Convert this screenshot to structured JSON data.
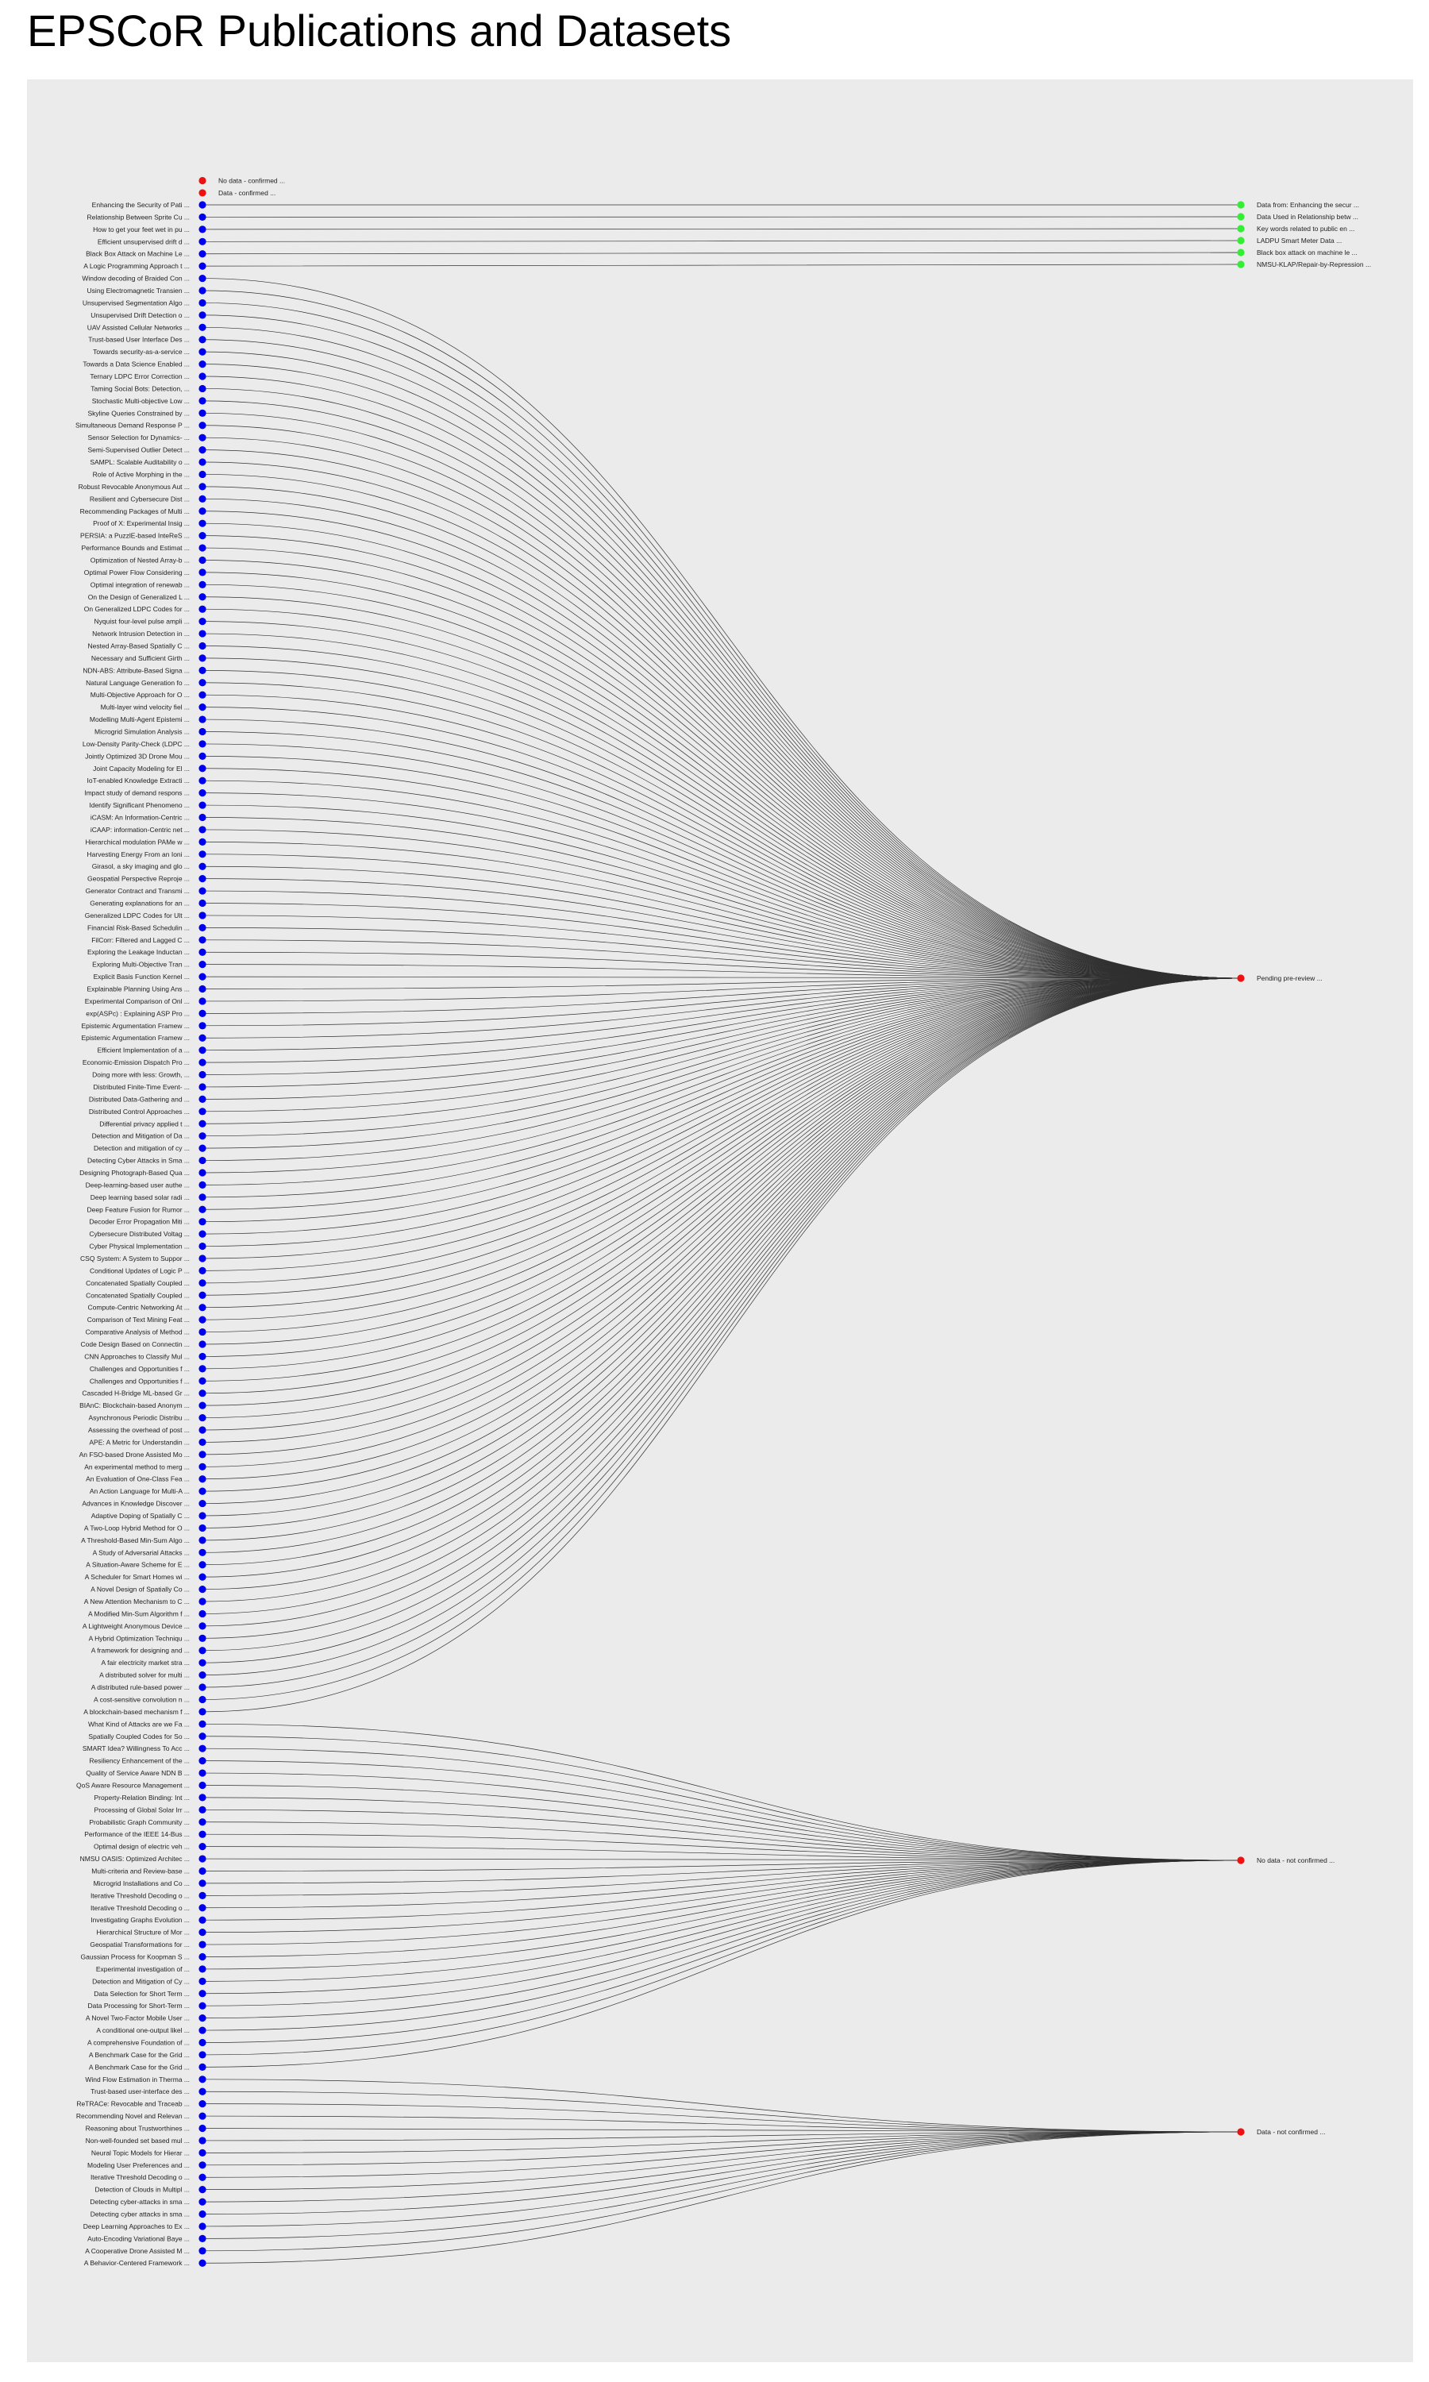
{
  "title": "EPSCoR Publications and Datasets",
  "colors": {
    "publication": "#0000ee",
    "dataset_with_data": "#33ee33",
    "status": "#ee1111",
    "edge": "#303030",
    "background": "#ebebeb"
  },
  "categories": [
    {
      "id": "no_data_confirmed",
      "label": "No data - confirmed ...",
      "color": "red"
    },
    {
      "id": "data_confirmed",
      "label": "Data - confirmed ...",
      "color": "red"
    }
  ],
  "datasets": [
    {
      "label": "Data from: Enhancing the secur ...",
      "color": "green"
    },
    {
      "label": "Data Used in Relationship betw ...",
      "color": "green"
    },
    {
      "label": "Key words related to public en ...",
      "color": "green"
    },
    {
      "label": "LADPU Smart Meter Data ...",
      "color": "green"
    },
    {
      "label": "Black box attack on machine le ...",
      "color": "green"
    },
    {
      "label": "NMSU-KLAP/Repair-by-Repression ...",
      "color": "green"
    },
    {
      "label": "Pending pre-review ...",
      "color": "red"
    },
    {
      "label": "No data - not confirmed ...",
      "color": "red"
    },
    {
      "label": "Data - not confirmed ...",
      "color": "red"
    }
  ],
  "publications": [
    {
      "label": "Enhancing the Security of Pati ...",
      "target": 0
    },
    {
      "label": "Relationship Between Sprite Cu ...",
      "target": 1
    },
    {
      "label": "How to get your feet wet in pu ...",
      "target": 2
    },
    {
      "label": "Efficient unsupervised drift d ...",
      "target": 3
    },
    {
      "label": "Black Box Attack on Machine Le ...",
      "target": 4
    },
    {
      "label": "A Logic Programming Approach t ...",
      "target": 5
    },
    {
      "label": "Window decoding of Braided Con ...",
      "target": 6
    },
    {
      "label": "Using Electromagnetic Transien ...",
      "target": 6
    },
    {
      "label": "Unsupervised Segmentation Algo ...",
      "target": 6
    },
    {
      "label": "Unsupervised Drift Detection o ...",
      "target": 6
    },
    {
      "label": "UAV Assisted Cellular Networks ...",
      "target": 6
    },
    {
      "label": "Trust-based User Interface Des ...",
      "target": 6
    },
    {
      "label": "Towards security-as-a-service ...",
      "target": 6
    },
    {
      "label": "Towards a Data Science Enabled ...",
      "target": 6
    },
    {
      "label": "Ternary LDPC Error Correction ...",
      "target": 6
    },
    {
      "label": "Taming Social Bots: Detection, ...",
      "target": 6
    },
    {
      "label": "Stochastic Multi-objective Low ...",
      "target": 6
    },
    {
      "label": "Skyline Queries Constrained by ...",
      "target": 6
    },
    {
      "label": "Simultaneous Demand Response P ...",
      "target": 6
    },
    {
      "label": "Sensor Selection for Dynamics- ...",
      "target": 6
    },
    {
      "label": "Semi-Supervised Outlier Detect ...",
      "target": 6
    },
    {
      "label": "SAMPL: Scalable Auditability o ...",
      "target": 6
    },
    {
      "label": "Role of Active Morphing in the ...",
      "target": 6
    },
    {
      "label": "Robust Revocable Anonymous Aut ...",
      "target": 6
    },
    {
      "label": "Resilient and Cybersecure Dist ...",
      "target": 6
    },
    {
      "label": "Recommending Packages of Multi ...",
      "target": 6
    },
    {
      "label": "Proof of X: Experimental Insig ...",
      "target": 6
    },
    {
      "label": "PERSIA: a PuzzlE-based InteReS ...",
      "target": 6
    },
    {
      "label": "Performance Bounds and Estimat ...",
      "target": 6
    },
    {
      "label": "Optimization of Nested Array-b ...",
      "target": 6
    },
    {
      "label": "Optimal Power Flow Considering ...",
      "target": 6
    },
    {
      "label": "Optimal integration of renewab ...",
      "target": 6
    },
    {
      "label": "On the Design of Generalized L ...",
      "target": 6
    },
    {
      "label": "On Generalized LDPC Codes for ...",
      "target": 6
    },
    {
      "label": "Nyquist four-level pulse ampli ...",
      "target": 6
    },
    {
      "label": "Network Intrusion Detection in ...",
      "target": 6
    },
    {
      "label": "Nested Array-Based Spatially C ...",
      "target": 6
    },
    {
      "label": "Necessary and Sufficient Girth ...",
      "target": 6
    },
    {
      "label": "NDN-ABS: Attribute-Based Signa ...",
      "target": 6
    },
    {
      "label": "Natural Language Generation fo ...",
      "target": 6
    },
    {
      "label": "Multi-Objective Approach for O ...",
      "target": 6
    },
    {
      "label": "Multi-layer wind velocity fiel ...",
      "target": 6
    },
    {
      "label": "Modelling Multi-Agent Epistemi ...",
      "target": 6
    },
    {
      "label": "Microgrid Simulation Analysis ...",
      "target": 6
    },
    {
      "label": "Low-Density Parity-Check (LDPC ...",
      "target": 6
    },
    {
      "label": "Jointly Optimized 3D Drone Mou ...",
      "target": 6
    },
    {
      "label": "Joint Capacity Modeling for El ...",
      "target": 6
    },
    {
      "label": "IoT-enabled Knowledge Extracti ...",
      "target": 6
    },
    {
      "label": "Impact study of demand respons ...",
      "target": 6
    },
    {
      "label": "Identify Significant Phenomeno ...",
      "target": 6
    },
    {
      "label": "iCASM: An Information-Centric ...",
      "target": 6
    },
    {
      "label": "iCAAP: information-Centric net ...",
      "target": 6
    },
    {
      "label": "Hierarchical modulation PAMe w ...",
      "target": 6
    },
    {
      "label": "Harvesting Energy From an Ioni ...",
      "target": 6
    },
    {
      "label": "Girasol, a sky imaging and glo ...",
      "target": 6
    },
    {
      "label": "Geospatial Perspective Reproje ...",
      "target": 6
    },
    {
      "label": "Generator Contract and Transmi ...",
      "target": 6
    },
    {
      "label": "Generating explanations for an ...",
      "target": 6
    },
    {
      "label": "Generalized LDPC Codes for Ult ...",
      "target": 6
    },
    {
      "label": "Financial Risk-Based Schedulin ...",
      "target": 6
    },
    {
      "label": "FilCorr: Filtered and Lagged C ...",
      "target": 6
    },
    {
      "label": "Exploring the Leakage Inductan ...",
      "target": 6
    },
    {
      "label": "Exploring Multi-Objective Tran ...",
      "target": 6
    },
    {
      "label": "Explicit Basis Function Kernel ...",
      "target": 6
    },
    {
      "label": "Explainable Planning Using Ans ...",
      "target": 6
    },
    {
      "label": "Experimental Comparison of Onl ...",
      "target": 6
    },
    {
      "label": "exp(ASPc) : Explaining ASP Pro ...",
      "target": 6
    },
    {
      "label": "Epistemic Argumentation Framew ...",
      "target": 6
    },
    {
      "label": "Epistemic Argumentation Framew ...",
      "target": 6
    },
    {
      "label": "Efficient Implementation of a ...",
      "target": 6
    },
    {
      "label": "Economic-Emission Dispatch Pro ...",
      "target": 6
    },
    {
      "label": "Doing more with less: Growth, ...",
      "target": 6
    },
    {
      "label": "Distributed Finite-Time Event- ...",
      "target": 6
    },
    {
      "label": "Distributed Data-Gathering and ...",
      "target": 6
    },
    {
      "label": "Distributed Control Approaches ...",
      "target": 6
    },
    {
      "label": "Differential privacy applied t ...",
      "target": 6
    },
    {
      "label": "Detection and Mitigation of Da ...",
      "target": 6
    },
    {
      "label": "Detection and mitigation of cy ...",
      "target": 6
    },
    {
      "label": "Detecting Cyber Attacks in Sma ...",
      "target": 6
    },
    {
      "label": "Designing Photograph-Based Qua ...",
      "target": 6
    },
    {
      "label": "Deep-learning-based user authe ...",
      "target": 6
    },
    {
      "label": "Deep learning based solar radi ...",
      "target": 6
    },
    {
      "label": "Deep Feature Fusion for Rumor ...",
      "target": 6
    },
    {
      "label": "Decoder Error Propagation Miti ...",
      "target": 6
    },
    {
      "label": "Cybersecure Distributed Voltag ...",
      "target": 6
    },
    {
      "label": "Cyber Physical Implementation ...",
      "target": 6
    },
    {
      "label": "CSQ System: A System to Suppor ...",
      "target": 6
    },
    {
      "label": "Conditional Updates of Logic P ...",
      "target": 6
    },
    {
      "label": "Concatenated Spatially Coupled ...",
      "target": 6
    },
    {
      "label": "Concatenated Spatially Coupled ...",
      "target": 6
    },
    {
      "label": "Compute-Centric Networking At ...",
      "target": 6
    },
    {
      "label": "Comparison of Text Mining Feat ...",
      "target": 6
    },
    {
      "label": "Comparative Analysis of Method ...",
      "target": 6
    },
    {
      "label": "Code Design Based on Connectin ...",
      "target": 6
    },
    {
      "label": "CNN Approaches to Classify Mul ...",
      "target": 6
    },
    {
      "label": "Challenges and Opportunities f ...",
      "target": 6
    },
    {
      "label": "Challenges and Opportunities f ...",
      "target": 6
    },
    {
      "label": "Cascaded H-Bridge ML-based Gr ...",
      "target": 6
    },
    {
      "label": "BIAnC: Blockchain-based Anonym ...",
      "target": 6
    },
    {
      "label": "Asynchronous Periodic Distribu ...",
      "target": 6
    },
    {
      "label": "Assessing the overhead of post ...",
      "target": 6
    },
    {
      "label": "APE: A Metric for Understandin ...",
      "target": 6
    },
    {
      "label": "An FSO-based Drone Assisted Mo ...",
      "target": 6
    },
    {
      "label": "An experimental method to merg ...",
      "target": 6
    },
    {
      "label": "An Evaluation of One-Class Fea ...",
      "target": 6
    },
    {
      "label": "An Action Language for Multi-A ...",
      "target": 6
    },
    {
      "label": "Advances in Knowledge Discover ...",
      "target": 6
    },
    {
      "label": "Adaptive Doping of Spatially C ...",
      "target": 6
    },
    {
      "label": "A Two-Loop Hybrid Method for O ...",
      "target": 6
    },
    {
      "label": "A Threshold-Based Min-Sum Algo ...",
      "target": 6
    },
    {
      "label": "A Study of Adversarial Attacks ...",
      "target": 6
    },
    {
      "label": "A Situation-Aware Scheme for E ...",
      "target": 6
    },
    {
      "label": "A Scheduler for Smart Homes wi ...",
      "target": 6
    },
    {
      "label": "A Novel Design of Spatially Co ...",
      "target": 6
    },
    {
      "label": "A New Attention Mechanism to C ...",
      "target": 6
    },
    {
      "label": "A Modified Min-Sum Algorithm f ...",
      "target": 6
    },
    {
      "label": "A Lightweight Anonymous Device ...",
      "target": 6
    },
    {
      "label": "A Hybrid Optimization Techniqu ...",
      "target": 6
    },
    {
      "label": "A framework for designing and ...",
      "target": 6
    },
    {
      "label": "A fair electricity market stra ...",
      "target": 6
    },
    {
      "label": "A distributed solver for multi ...",
      "target": 6
    },
    {
      "label": "A distributed rule-based power ...",
      "target": 6
    },
    {
      "label": "A cost-sensitive convolution n ...",
      "target": 6
    },
    {
      "label": "A blockchain-based mechanism f ...",
      "target": 6
    },
    {
      "label": "What Kind of Attacks are we Fa ...",
      "target": 7
    },
    {
      "label": "Spatially Coupled Codes for So ...",
      "target": 7
    },
    {
      "label": "SMART Idea? Willingness To Acc ...",
      "target": 7
    },
    {
      "label": "Resiliency Enhancement of the ...",
      "target": 7
    },
    {
      "label": "Quality of Service Aware NDN B ...",
      "target": 7
    },
    {
      "label": "QoS Aware Resource Management ...",
      "target": 7
    },
    {
      "label": "Property-Relation Binding: Int ...",
      "target": 7
    },
    {
      "label": "Processing of Global Solar Irr ...",
      "target": 7
    },
    {
      "label": "Probabilistic Graph Community ...",
      "target": 7
    },
    {
      "label": "Performance of the IEEE 14-Bus ...",
      "target": 7
    },
    {
      "label": "Optimal design of electric veh ...",
      "target": 7
    },
    {
      "label": "NMSU OASIS: Optimized Architec ...",
      "target": 7
    },
    {
      "label": "Multi-criteria and Review-base ...",
      "target": 7
    },
    {
      "label": "Microgrid Installations and Co ...",
      "target": 7
    },
    {
      "label": "Iterative Threshold Decoding o ...",
      "target": 7
    },
    {
      "label": "Iterative Threshold Decoding o ...",
      "target": 7
    },
    {
      "label": "Investigating Graphs Evolution ...",
      "target": 7
    },
    {
      "label": "Hierarchical Structure of Mor ...",
      "target": 7
    },
    {
      "label": "Geospatial Transformations for ...",
      "target": 7
    },
    {
      "label": "Gaussian Process for Koopman S ...",
      "target": 7
    },
    {
      "label": "Experimental investigation of ...",
      "target": 7
    },
    {
      "label": "Detection and Mitigation of Cy ...",
      "target": 7
    },
    {
      "label": "Data Selection for Short Term ...",
      "target": 7
    },
    {
      "label": "Data Processing for Short-Term ...",
      "target": 7
    },
    {
      "label": "A Novel Two-Factor Mobile User ...",
      "target": 7
    },
    {
      "label": "A conditional one-output likel ...",
      "target": 7
    },
    {
      "label": "A comprehensive Foundation of ...",
      "target": 7
    },
    {
      "label": "A Benchmark Case for the Grid ...",
      "target": 7
    },
    {
      "label": "A Benchmark Case for the Grid ...",
      "target": 7
    },
    {
      "label": "Wind Flow Estimation in Therma ...",
      "target": 8
    },
    {
      "label": "Trust-based user-interface des ...",
      "target": 8
    },
    {
      "label": "ReTRACe: Revocable and Traceab ...",
      "target": 8
    },
    {
      "label": "Recommending Novel and Relevan ...",
      "target": 8
    },
    {
      "label": "Reasoning about Trustworthines ...",
      "target": 8
    },
    {
      "label": "Non-well-founded set based mul ...",
      "target": 8
    },
    {
      "label": "Neural Topic Models for Hierar ...",
      "target": 8
    },
    {
      "label": "Modeling User Preferences and ...",
      "target": 8
    },
    {
      "label": "Iterative Threshold Decoding o ...",
      "target": 8
    },
    {
      "label": "Detection of Clouds in Multipl ...",
      "target": 8
    },
    {
      "label": "Detecting cyber-attacks in sma ...",
      "target": 8
    },
    {
      "label": "Detecting cyber attacks in sma ...",
      "target": 8
    },
    {
      "label": "Deep Learning Approaches to Ex ...",
      "target": 8
    },
    {
      "label": "Auto-Encoding Variational Baye ...",
      "target": 8
    },
    {
      "label": "A Cooperative Drone Assisted M ...",
      "target": 8
    },
    {
      "label": "A Behavior-Centered Framework ...",
      "target": 8
    }
  ]
}
